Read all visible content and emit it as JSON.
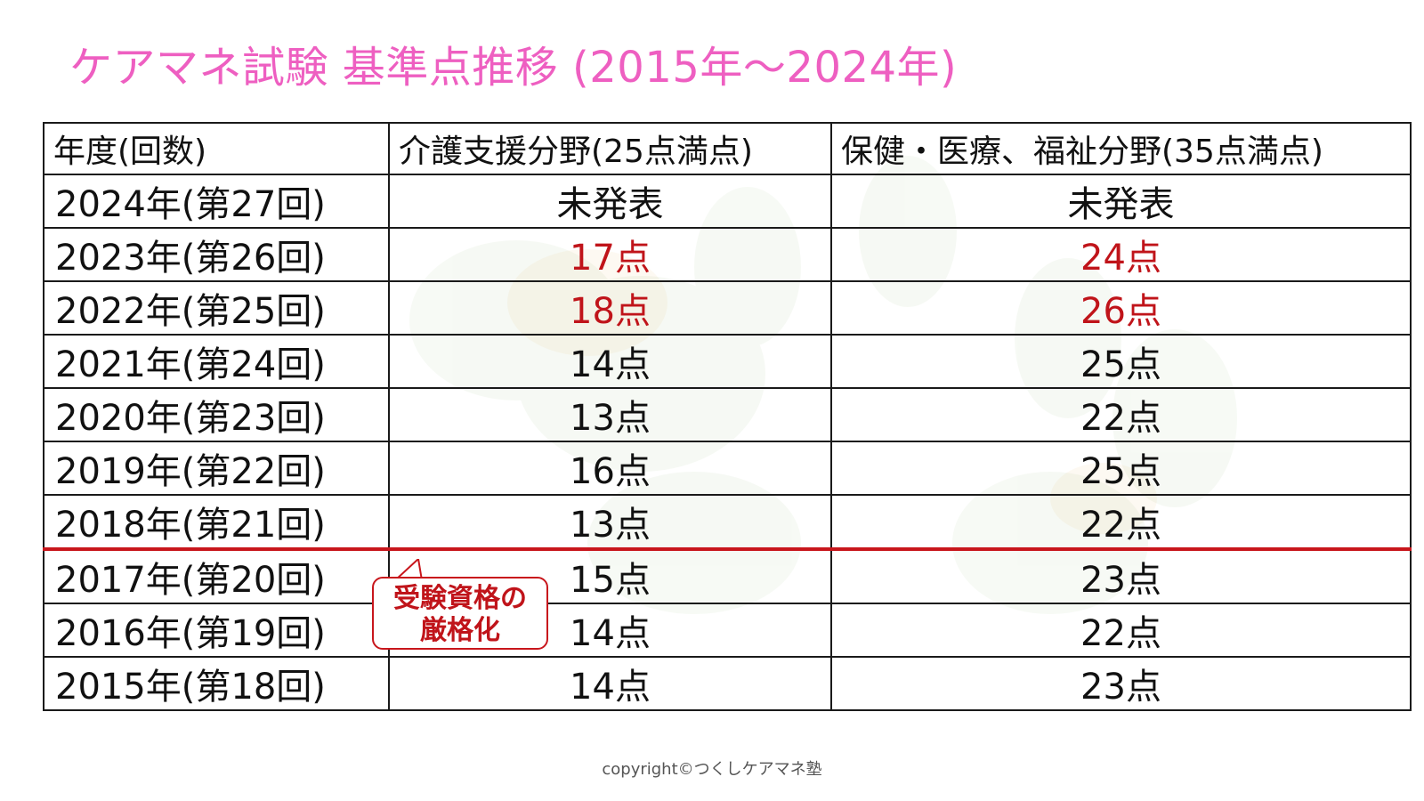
{
  "title": "ケアマネ試験 基準点推移 (2015年～2024年)",
  "colors": {
    "title": "#ee5fc1",
    "highlight": "#c0141a",
    "rule": "#c8161c"
  },
  "table": {
    "headers": [
      "年度(回数)",
      "介護支援分野(25点満点)",
      "保健・医療、福祉分野(35点満点)"
    ],
    "rows": [
      {
        "year": "2024年(第27回)",
        "kaigo": "未発表",
        "hoken": "未発表",
        "highlight": false
      },
      {
        "year": "2023年(第26回)",
        "kaigo": "17点",
        "hoken": "24点",
        "highlight": true
      },
      {
        "year": "2022年(第25回)",
        "kaigo": "18点",
        "hoken": "26点",
        "highlight": true
      },
      {
        "year": "2021年(第24回)",
        "kaigo": "14点",
        "hoken": "25点",
        "highlight": false
      },
      {
        "year": "2020年(第23回)",
        "kaigo": "13点",
        "hoken": "22点",
        "highlight": false
      },
      {
        "year": "2019年(第22回)",
        "kaigo": "16点",
        "hoken": "25点",
        "highlight": false
      },
      {
        "year": "2018年(第21回)",
        "kaigo": "13点",
        "hoken": "22点",
        "highlight": false
      },
      {
        "year": "2017年(第20回)",
        "kaigo": "15点",
        "hoken": "23点",
        "highlight": false
      },
      {
        "year": "2016年(第19回)",
        "kaigo": "14点",
        "hoken": "22点",
        "highlight": false
      },
      {
        "year": "2015年(第18回)",
        "kaigo": "14点",
        "hoken": "23点",
        "highlight": false
      }
    ]
  },
  "callout": {
    "line1": "受験資格の",
    "line2": "厳格化"
  },
  "copyright": "copyright©つくしケアマネ塾"
}
